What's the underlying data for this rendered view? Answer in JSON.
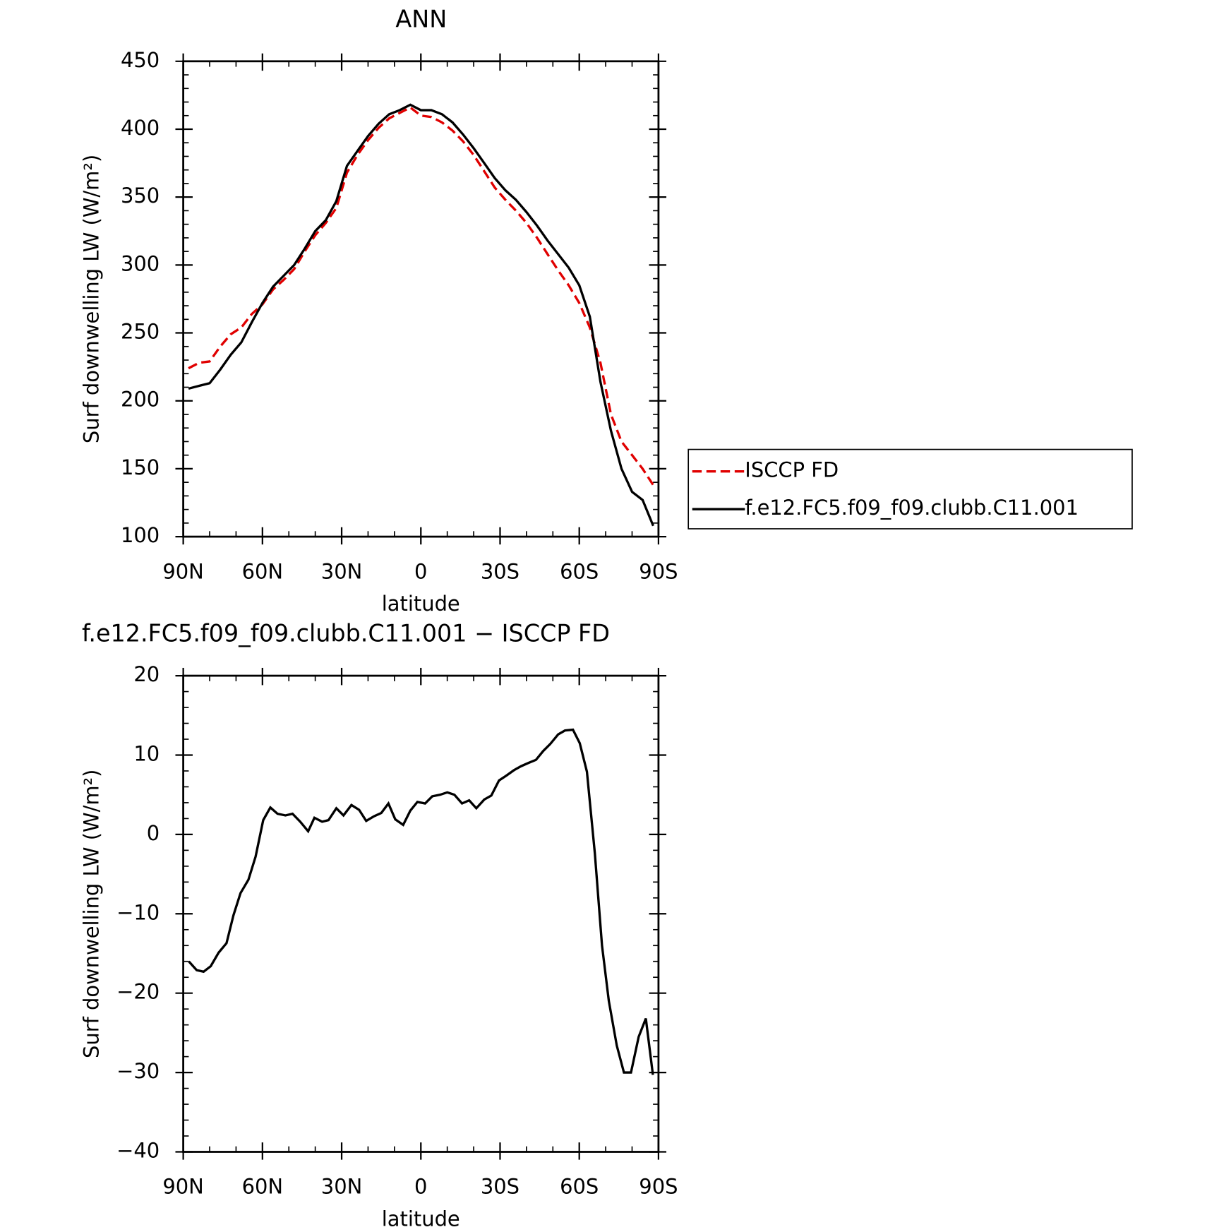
{
  "chart_data": [
    {
      "type": "line",
      "title": "ANN",
      "xlabel": "latitude",
      "ylabel": "Surf downwelling LW (W/m²)",
      "xlim": [
        90,
        -90
      ],
      "xticks": [
        {
          "value": 90,
          "label": "90N"
        },
        {
          "value": 60,
          "label": "60N"
        },
        {
          "value": 30,
          "label": "30N"
        },
        0,
        {
          "value": -30,
          "label": "30S"
        },
        {
          "value": -60,
          "label": "60S"
        },
        {
          "value": -90,
          "label": "90S"
        }
      ],
      "ylim": [
        100,
        450
      ],
      "yticks": [
        100,
        150,
        200,
        250,
        300,
        350,
        400,
        450
      ],
      "x": [
        88,
        84,
        80,
        76,
        72,
        68,
        64,
        60,
        56,
        52,
        48,
        44,
        40,
        36,
        32,
        28,
        24,
        20,
        16,
        12,
        8,
        4,
        0,
        -4,
        -8,
        -12,
        -16,
        -20,
        -24,
        -28,
        -32,
        -36,
        -40,
        -44,
        -48,
        -52,
        -56,
        -60,
        -64,
        -68,
        -72,
        -76,
        -80,
        -84,
        -88
      ],
      "legend": "right",
      "series": [
        {
          "name": "ISCCP FD",
          "color": "#e00000",
          "linestyle": "dashed",
          "values": [
            224,
            228,
            229,
            240,
            249,
            254,
            264,
            271,
            282,
            289,
            297,
            310,
            322,
            331,
            342,
            368,
            381,
            392,
            401,
            408,
            412,
            416,
            410,
            409,
            405,
            399,
            391,
            381,
            369,
            357,
            348,
            340,
            331,
            320,
            308,
            296,
            285,
            272,
            254,
            228,
            190,
            170,
            160,
            150,
            138
          ]
        },
        {
          "name": "f.e12.FC5.f09_f09.clubb.C11.001",
          "color": "#000000",
          "linestyle": "solid",
          "values": [
            209,
            211,
            213,
            223,
            234,
            243,
            258,
            272,
            284,
            292,
            300,
            312,
            325,
            333,
            347,
            373,
            384,
            395,
            404,
            411,
            414,
            418,
            414,
            414,
            411,
            405,
            396,
            386,
            375,
            364,
            355,
            348,
            339,
            329,
            318,
            308,
            298,
            285,
            262,
            214,
            178,
            150,
            133,
            127,
            108
          ]
        }
      ]
    },
    {
      "type": "line",
      "title": "f.e12.FC5.f09_f09.clubb.C11.001 − ISCCP FD",
      "xlabel": "latitude",
      "ylabel": "Surf downwelling LW (W/m²)",
      "xlim": [
        90,
        -90
      ],
      "xticks": [
        {
          "value": 90,
          "label": "90N"
        },
        {
          "value": 60,
          "label": "60N"
        },
        {
          "value": 30,
          "label": "30N"
        },
        0,
        {
          "value": -30,
          "label": "30S"
        },
        {
          "value": -60,
          "label": "60S"
        },
        {
          "value": -90,
          "label": "90S"
        }
      ],
      "ylim": [
        -40,
        20
      ],
      "yticks": [
        {
          "value": -40,
          "label": "−40"
        },
        {
          "value": -30,
          "label": "−30"
        },
        {
          "value": -20,
          "label": "−20"
        },
        {
          "value": -10,
          "label": "−10"
        },
        0,
        10,
        20
      ],
      "x": [
        87.9,
        84.9,
        82.3,
        79.6,
        76.6,
        73.6,
        71.0,
        68.3,
        65.3,
        62.6,
        59.7,
        57.0,
        54.3,
        51.3,
        48.6,
        45.7,
        42.7,
        40.3,
        37.4,
        35.0,
        32.0,
        29.3,
        26.3,
        23.4,
        20.7,
        17.7,
        15.0,
        12.3,
        9.7,
        6.7,
        4.0,
        1.3,
        -1.6,
        -4.3,
        -7.3,
        -10.0,
        -12.7,
        -15.6,
        -18.3,
        -21.0,
        -24.0,
        -26.7,
        -29.6,
        -32.3,
        -35.3,
        -38.0,
        -40.7,
        -43.6,
        -46.3,
        -49.0,
        -52.0,
        -54.6,
        -57.6,
        -60.2,
        -62.9,
        -65.9,
        -68.6,
        -71.2,
        -74.2,
        -76.9,
        -79.6,
        -82.5,
        -85.2,
        -87.9
      ],
      "color": "#000000",
      "values": [
        -16,
        -17.1,
        -17.3,
        -16.6,
        -14.9,
        -13.7,
        -10.2,
        -7.4,
        -5.7,
        -2.8,
        1.8,
        3.4,
        2.6,
        2.4,
        2.6,
        1.6,
        0.4,
        2.1,
        1.6,
        1.8,
        3.3,
        2.4,
        3.7,
        3.1,
        1.7,
        2.3,
        2.7,
        3.9,
        1.9,
        1.2,
        3.0,
        4.1,
        3.9,
        4.8,
        5.0,
        5.3,
        5.0,
        3.9,
        4.3,
        3.3,
        4.4,
        4.9,
        6.8,
        7.4,
        8.1,
        8.6,
        9.0,
        9.4,
        10.5,
        11.4,
        12.6,
        13.1,
        13.2,
        11.5,
        7.9,
        -2.4,
        -14,
        -21,
        -26.6,
        -30,
        -30,
        -25.5,
        -23.2,
        -30.3
      ]
    }
  ]
}
